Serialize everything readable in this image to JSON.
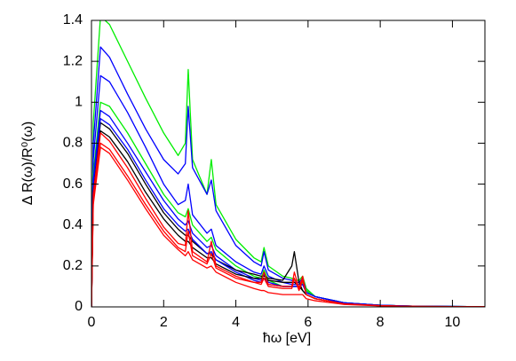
{
  "chart_data": {
    "type": "line",
    "x_label": "ħω [eV]",
    "y_label": "Δ R(ω)/R⁰(ω)",
    "x": [
      0,
      0.05,
      0.25,
      0.5,
      1,
      1.5,
      2,
      2.4,
      2.6,
      2.68,
      2.8,
      3.2,
      3.32,
      3.45,
      4,
      4.5,
      4.7,
      4.78,
      4.9,
      5.3,
      5.55,
      5.62,
      5.75,
      5.85,
      5.95,
      6.2,
      7,
      8,
      9,
      10.9
    ],
    "series": [
      {
        "color": "#00ee00",
        "values": [
          0,
          0.9,
          1.42,
          1.38,
          1.2,
          1.02,
          0.85,
          0.74,
          0.8,
          1.16,
          0.72,
          0.55,
          0.72,
          0.5,
          0.33,
          0.24,
          0.22,
          0.29,
          0.2,
          0.15,
          0.14,
          0.13,
          0.13,
          0.15,
          0.09,
          0.05,
          0.02,
          0.008,
          0.003,
          0.001
        ]
      },
      {
        "color": "#0000ff",
        "values": [
          0,
          0.8,
          1.27,
          1.22,
          1.04,
          0.87,
          0.72,
          0.65,
          0.7,
          0.98,
          0.68,
          0.55,
          0.62,
          0.47,
          0.3,
          0.22,
          0.2,
          0.27,
          0.18,
          0.14,
          0.13,
          0.12,
          0.12,
          0.14,
          0.08,
          0.05,
          0.02,
          0.008,
          0.003,
          0.001
        ]
      },
      {
        "color": "#0000ff",
        "values": [
          0,
          0.72,
          1.13,
          1.1,
          0.95,
          0.78,
          0.6,
          0.5,
          0.52,
          0.6,
          0.45,
          0.36,
          0.38,
          0.3,
          0.22,
          0.17,
          0.16,
          0.2,
          0.15,
          0.12,
          0.11,
          0.11,
          0.11,
          0.13,
          0.08,
          0.05,
          0.02,
          0.008,
          0.003,
          0.001
        ]
      },
      {
        "color": "#00ee00",
        "values": [
          0,
          0.65,
          1.0,
          0.98,
          0.85,
          0.7,
          0.55,
          0.46,
          0.44,
          0.48,
          0.4,
          0.32,
          0.34,
          0.28,
          0.2,
          0.15,
          0.14,
          0.18,
          0.13,
          0.1,
          0.1,
          0.1,
          0.1,
          0.12,
          0.08,
          0.05,
          0.02,
          0.008,
          0.003,
          0.001
        ]
      },
      {
        "color": "#0000ff",
        "values": [
          0,
          0.62,
          0.96,
          0.93,
          0.8,
          0.66,
          0.52,
          0.43,
          0.4,
          0.42,
          0.36,
          0.29,
          0.3,
          0.25,
          0.18,
          0.14,
          0.13,
          0.16,
          0.12,
          0.1,
          0.1,
          0.1,
          0.1,
          0.11,
          0.07,
          0.05,
          0.02,
          0.008,
          0.003,
          0.001
        ]
      },
      {
        "color": "#000000",
        "values": [
          0,
          0.58,
          0.9,
          0.87,
          0.75,
          0.6,
          0.46,
          0.38,
          0.35,
          0.35,
          0.32,
          0.26,
          0.26,
          0.23,
          0.18,
          0.16,
          0.15,
          0.15,
          0.14,
          0.13,
          0.2,
          0.27,
          0.12,
          0.08,
          0.06,
          0.04,
          0.015,
          0.006,
          0.002,
          0.001
        ]
      },
      {
        "color": "#0000ff",
        "values": [
          0,
          0.6,
          0.92,
          0.89,
          0.77,
          0.62,
          0.48,
          0.4,
          0.37,
          0.38,
          0.33,
          0.26,
          0.27,
          0.23,
          0.17,
          0.13,
          0.12,
          0.14,
          0.11,
          0.1,
          0.1,
          0.1,
          0.1,
          0.11,
          0.07,
          0.05,
          0.02,
          0.008,
          0.003,
          0.001
        ]
      },
      {
        "color": "#000000",
        "values": [
          0,
          0.55,
          0.86,
          0.83,
          0.71,
          0.56,
          0.43,
          0.35,
          0.32,
          0.32,
          0.29,
          0.24,
          0.24,
          0.21,
          0.16,
          0.14,
          0.14,
          0.14,
          0.13,
          0.12,
          0.12,
          0.12,
          0.1,
          0.08,
          0.06,
          0.04,
          0.015,
          0.006,
          0.002,
          0.001
        ]
      },
      {
        "color": "#ff0000",
        "values": [
          0,
          0.55,
          0.85,
          0.81,
          0.68,
          0.53,
          0.39,
          0.31,
          0.3,
          0.47,
          0.27,
          0.22,
          0.32,
          0.2,
          0.15,
          0.12,
          0.12,
          0.17,
          0.11,
          0.1,
          0.1,
          0.17,
          0.09,
          0.15,
          0.06,
          0.04,
          0.015,
          0.006,
          0.002,
          0.001
        ]
      },
      {
        "color": "#ff0000",
        "values": [
          0,
          0.52,
          0.8,
          0.77,
          0.64,
          0.5,
          0.37,
          0.29,
          0.27,
          0.37,
          0.25,
          0.21,
          0.26,
          0.19,
          0.14,
          0.12,
          0.11,
          0.14,
          0.1,
          0.09,
          0.09,
          0.14,
          0.08,
          0.13,
          0.06,
          0.04,
          0.015,
          0.006,
          0.002,
          0.001
        ]
      },
      {
        "color": "#ff0000",
        "values": [
          0,
          0.5,
          0.78,
          0.75,
          0.62,
          0.48,
          0.35,
          0.28,
          0.25,
          0.27,
          0.23,
          0.19,
          0.2,
          0.17,
          0.12,
          0.09,
          0.08,
          0.08,
          0.07,
          0.06,
          0.06,
          0.06,
          0.06,
          0.06,
          0.04,
          0.03,
          0.012,
          0.005,
          0.002,
          0.001
        ]
      }
    ],
    "xlim": [
      0,
      10.9
    ],
    "ylim": [
      0,
      1.4
    ],
    "xticks": [
      0,
      2,
      4,
      6,
      8,
      10
    ],
    "yticks": [
      0,
      0.2,
      0.4,
      0.6,
      0.8,
      1,
      1.2,
      1.4
    ]
  }
}
